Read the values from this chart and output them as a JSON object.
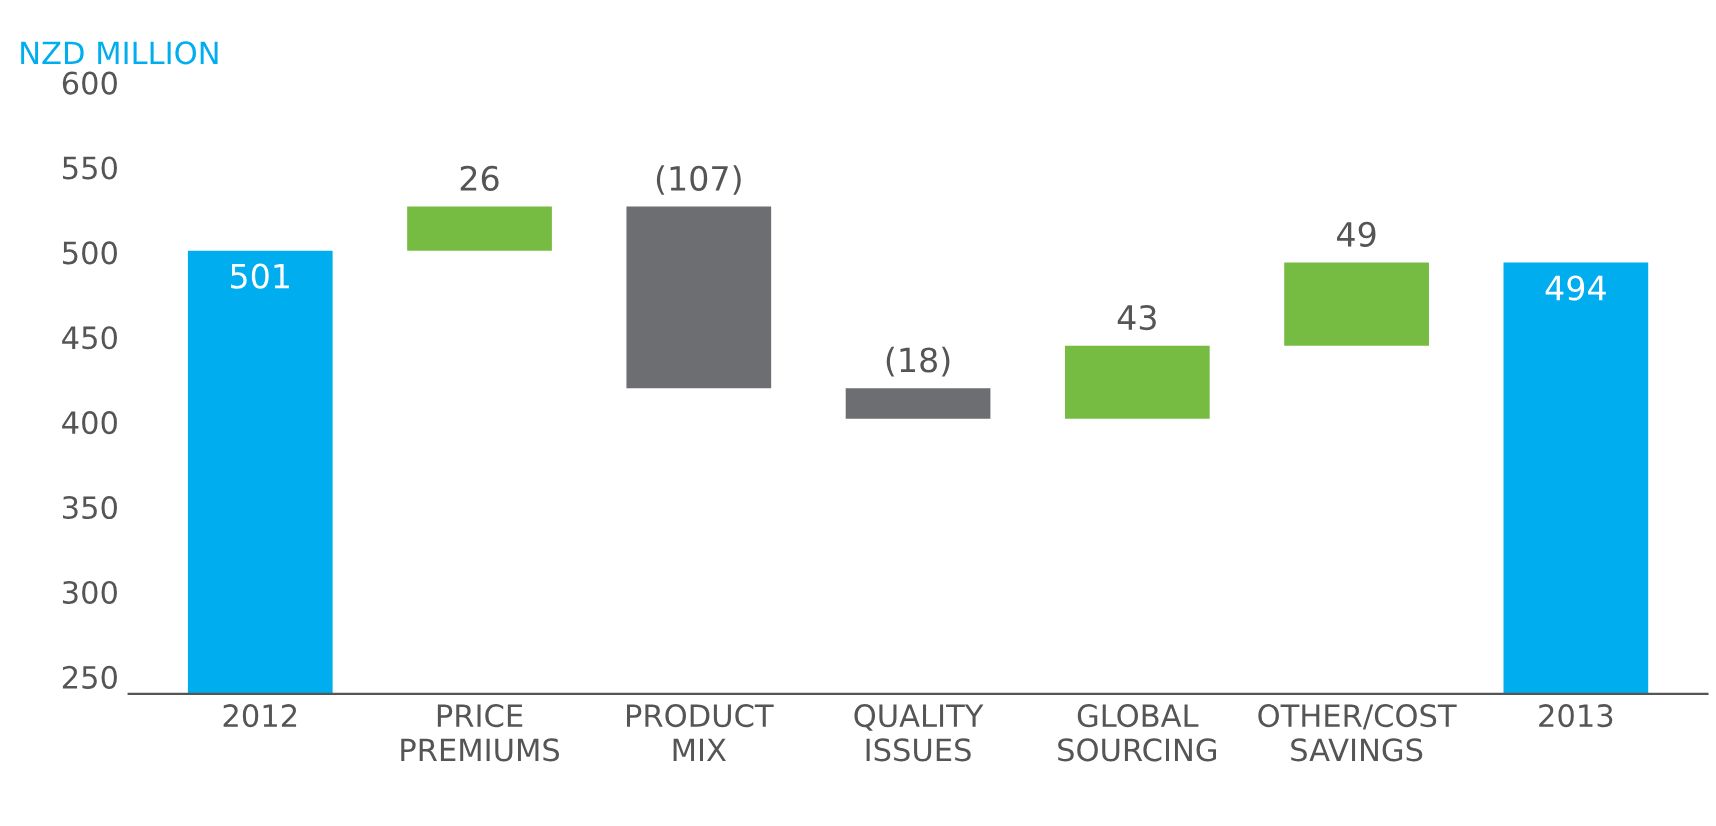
{
  "chart_data": {
    "type": "bar",
    "ylabel": "NZD MILLION",
    "categories": [
      "2012",
      "PRICE\nPREMIUMS",
      "PRODUCT\nMIX",
      "QUALITY\nISSUES",
      "GLOBAL\nSOURCING",
      "OTHER/COST\nSAVINGS",
      "2013"
    ],
    "values": [
      501,
      26,
      -107,
      -18,
      43,
      49,
      494
    ],
    "base": [
      null,
      501,
      527,
      420,
      402,
      445,
      null
    ],
    "colors": [
      "#00aeef",
      "#76bc43",
      "#6d6e71",
      "#6d6e71",
      "#76bc43",
      "#76bc43",
      "#00aeef"
    ],
    "value_labels": [
      "501",
      "26",
      "(107)",
      "(18)",
      "43",
      "49",
      "494"
    ],
    "ylim": [
      240,
      600
    ],
    "yticks": [
      250,
      300,
      350,
      400,
      450,
      500,
      550,
      600
    ],
    "grid": false,
    "legend": false
  }
}
